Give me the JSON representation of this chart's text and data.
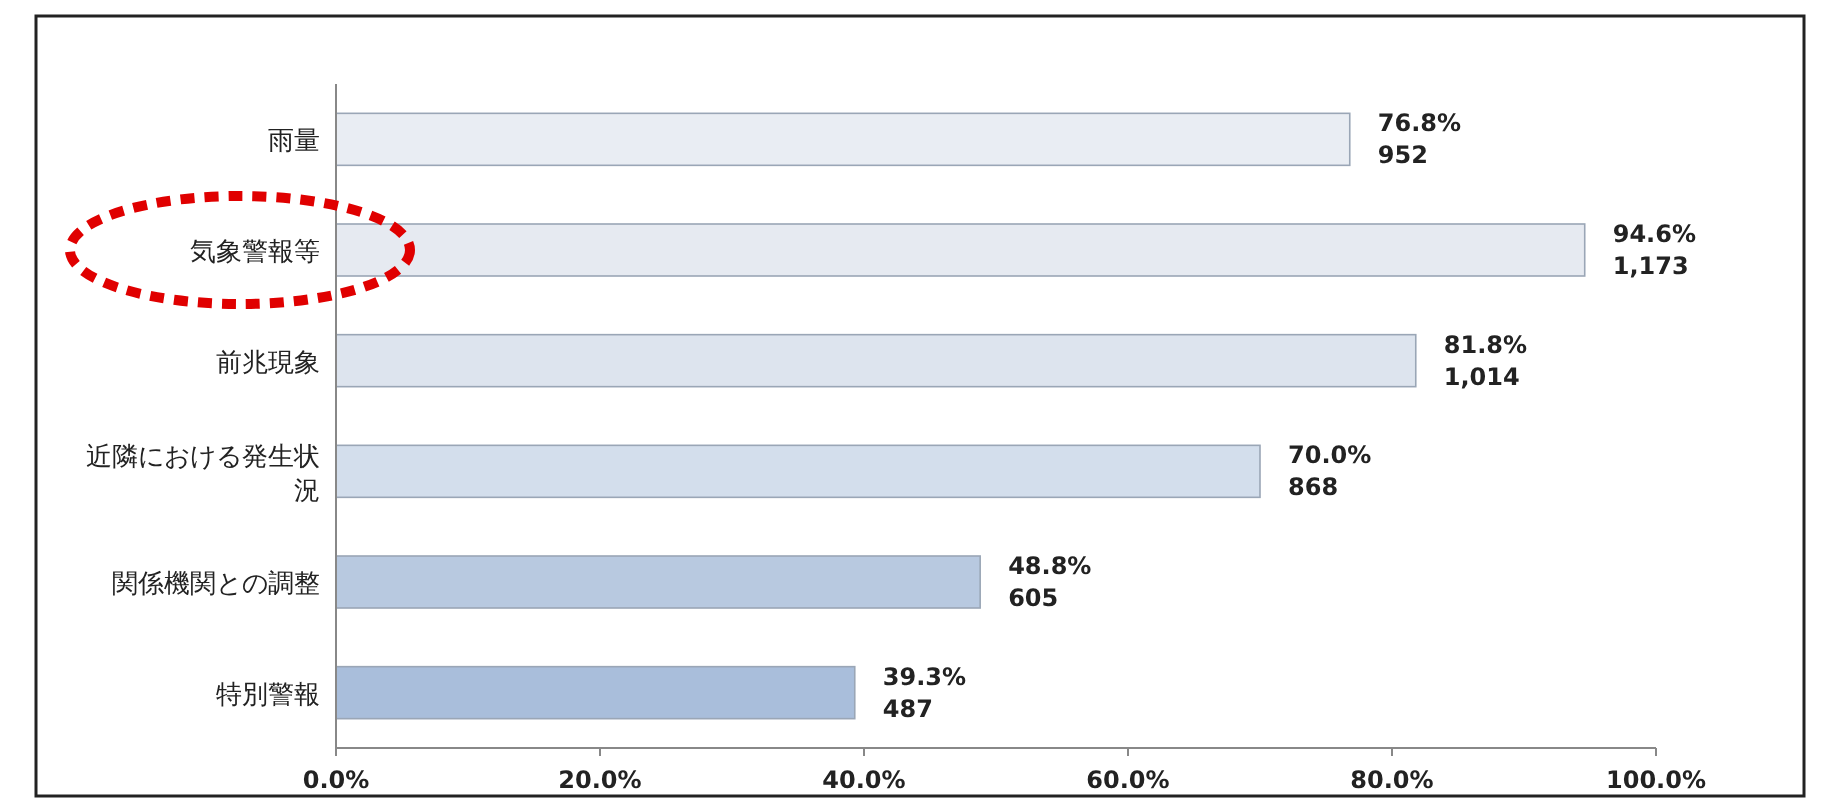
{
  "chart_data": {
    "type": "bar",
    "orientation": "horizontal",
    "categories": [
      "雨量",
      "気象警報等",
      "前兆現象",
      "近隣における発生状況",
      "関係機関との調整",
      "特別警報"
    ],
    "values": [
      76.8,
      94.6,
      81.8,
      70.0,
      48.8,
      39.3
    ],
    "value_labels": [
      "76.8%\n952",
      "94.6%\n1,173",
      "81.8%\n1,014",
      "70.0%\n868",
      "48.8%\n605",
      "39.3%\n487"
    ],
    "colors": [
      "#e9edf3",
      "#e6eaf1",
      "#dde4ee",
      "#d3deec",
      "#b8c9e0",
      "#a9bedb"
    ],
    "xlim": [
      0,
      100
    ],
    "xticks": [
      {
        "value": 0,
        "label": "0.0%"
      },
      {
        "value": 20,
        "label": "20.0%"
      },
      {
        "value": 40,
        "label": "40.0%"
      },
      {
        "value": 60,
        "label": "60.0%"
      },
      {
        "value": 80,
        "label": "80.0%"
      },
      {
        "value": 100,
        "label": "100.0%"
      }
    ],
    "grid": false
  }
}
